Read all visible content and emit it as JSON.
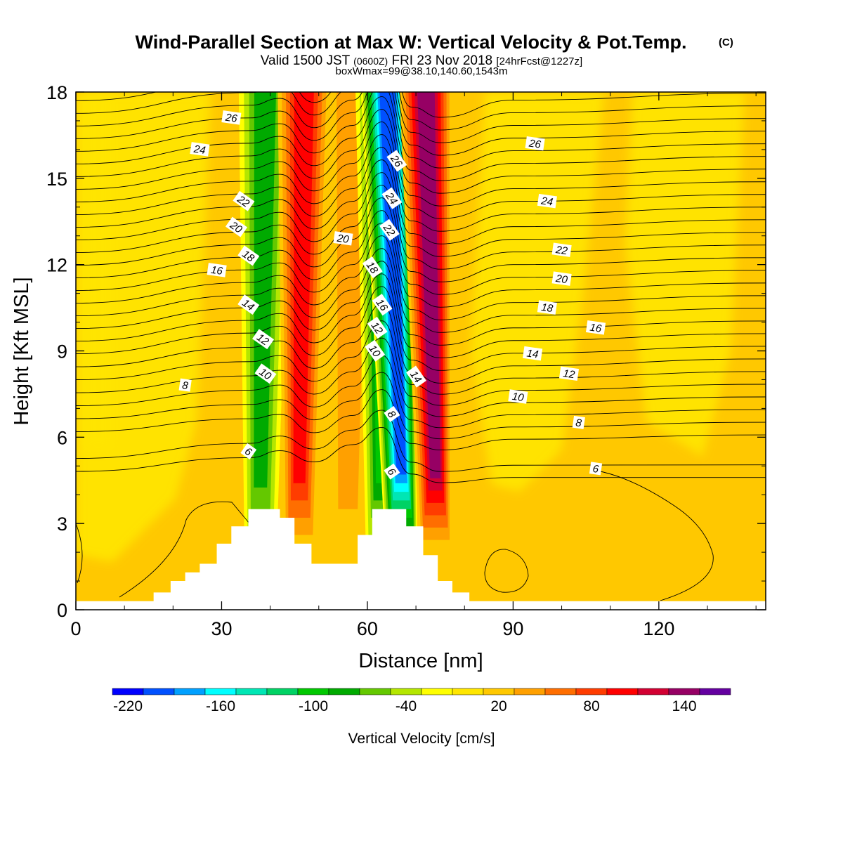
{
  "title": "Wind-Parallel Section at Max W: Vertical Velocity & Pot.Temp.",
  "copyright_mark": "(C)",
  "subtitle_valid": "Valid 1500 JST",
  "subtitle_utc": "(0600Z)",
  "subtitle_date": "FRI 23 Nov 2018",
  "subtitle_fcst": "[24hrFcst@1227z]",
  "subtitle_box": "boxWmax=99@38.10,140.60,1543m",
  "chart_data": {
    "type": "heatmap",
    "xlabel": "Distance [nm]",
    "ylabel": "Height [Kft MSL]",
    "xlim": [
      0,
      142
    ],
    "ylim": [
      0,
      18
    ],
    "x_ticks": [
      0,
      30,
      60,
      90,
      120
    ],
    "y_ticks": [
      0,
      3,
      6,
      9,
      12,
      15,
      18
    ],
    "field": "Vertical Velocity",
    "colorbar": {
      "label": "Vertical Velocity [cm/s]",
      "tick_labels": [
        -220,
        -160,
        -100,
        -40,
        20,
        80,
        140
      ],
      "levels": [
        -220,
        -200,
        -180,
        -160,
        -140,
        -120,
        -100,
        -80,
        -60,
        -40,
        -20,
        0,
        20,
        40,
        60,
        80,
        100,
        120,
        140,
        160
      ],
      "colors": [
        "#0000ff",
        "#0050ff",
        "#00a0ff",
        "#00ffff",
        "#00e6b4",
        "#00d264",
        "#00c800",
        "#00aa00",
        "#64c800",
        "#b4e600",
        "#ffff00",
        "#ffe600",
        "#ffc800",
        "#ffa000",
        "#ff6e00",
        "#ff3c00",
        "#ff0000",
        "#d20032",
        "#960064",
        "#6400a0"
      ]
    },
    "bands": [
      {
        "x_bottom": 38,
        "x_top": 39,
        "value": -80
      },
      {
        "x_bottom": 46,
        "x_top": 47,
        "value": 100
      },
      {
        "x_bottom": 56,
        "x_top": 57,
        "value": 40
      },
      {
        "x_bottom": 63,
        "x_top": 63,
        "value": -100
      },
      {
        "x_bottom": 67,
        "x_top": 64,
        "value": -200
      },
      {
        "x_bottom": 74,
        "x_top": 72,
        "value": 140
      }
    ],
    "terrain_kft": [
      {
        "x": 0,
        "h": 0.3
      },
      {
        "x": 16,
        "h": 0.3
      },
      {
        "x": 16,
        "h": 0.6
      },
      {
        "x": 19.5,
        "h": 0.6
      },
      {
        "x": 19.5,
        "h": 1.0
      },
      {
        "x": 22.5,
        "h": 1.0
      },
      {
        "x": 22.5,
        "h": 1.3
      },
      {
        "x": 25.5,
        "h": 1.3
      },
      {
        "x": 25.5,
        "h": 1.6
      },
      {
        "x": 29,
        "h": 1.6
      },
      {
        "x": 29,
        "h": 2.3
      },
      {
        "x": 32,
        "h": 2.3
      },
      {
        "x": 32,
        "h": 2.9
      },
      {
        "x": 35.5,
        "h": 2.9
      },
      {
        "x": 35.5,
        "h": 3.5
      },
      {
        "x": 42,
        "h": 3.5
      },
      {
        "x": 42,
        "h": 3.2
      },
      {
        "x": 45,
        "h": 3.2
      },
      {
        "x": 45,
        "h": 2.3
      },
      {
        "x": 48.5,
        "h": 2.3
      },
      {
        "x": 48.5,
        "h": 1.6
      },
      {
        "x": 58,
        "h": 1.6
      },
      {
        "x": 58,
        "h": 2.6
      },
      {
        "x": 61,
        "h": 2.6
      },
      {
        "x": 61,
        "h": 3.5
      },
      {
        "x": 68,
        "h": 3.5
      },
      {
        "x": 68,
        "h": 2.9
      },
      {
        "x": 71.5,
        "h": 2.9
      },
      {
        "x": 71.5,
        "h": 1.9
      },
      {
        "x": 74.5,
        "h": 1.9
      },
      {
        "x": 74.5,
        "h": 1.0
      },
      {
        "x": 77.5,
        "h": 1.0
      },
      {
        "x": 77.5,
        "h": 0.6
      },
      {
        "x": 81,
        "h": 0.6
      },
      {
        "x": 81,
        "h": 0.3
      },
      {
        "x": 142,
        "h": 0.3
      }
    ],
    "theta_contour_labels": [
      {
        "value": "26",
        "x": 32,
        "y": 17.1
      },
      {
        "value": "24",
        "x": 25.5,
        "y": 16.0
      },
      {
        "value": "22",
        "x": 34.5,
        "y": 14.2
      },
      {
        "value": "20",
        "x": 33,
        "y": 13.3
      },
      {
        "value": "18",
        "x": 35.5,
        "y": 12.3
      },
      {
        "value": "16",
        "x": 29,
        "y": 11.8
      },
      {
        "value": "14",
        "x": 35.5,
        "y": 10.6
      },
      {
        "value": "12",
        "x": 38.5,
        "y": 9.4
      },
      {
        "value": "10",
        "x": 39,
        "y": 8.2
      },
      {
        "value": "8",
        "x": 22.5,
        "y": 7.8
      },
      {
        "value": "6",
        "x": 35.5,
        "y": 5.5
      },
      {
        "value": "20",
        "x": 55,
        "y": 12.9
      },
      {
        "value": "26",
        "x": 66,
        "y": 15.6
      },
      {
        "value": "24",
        "x": 65,
        "y": 14.3
      },
      {
        "value": "22",
        "x": 64.5,
        "y": 13.2
      },
      {
        "value": "18",
        "x": 61,
        "y": 11.9
      },
      {
        "value": "16",
        "x": 63,
        "y": 10.6
      },
      {
        "value": "12",
        "x": 62,
        "y": 9.8
      },
      {
        "value": "10",
        "x": 61.5,
        "y": 9.0
      },
      {
        "value": "14",
        "x": 70,
        "y": 8.1
      },
      {
        "value": "8",
        "x": 65,
        "y": 6.8
      },
      {
        "value": "6",
        "x": 65,
        "y": 4.8
      },
      {
        "value": "26",
        "x": 94.5,
        "y": 16.2
      },
      {
        "value": "24",
        "x": 97,
        "y": 14.2
      },
      {
        "value": "22",
        "x": 100,
        "y": 12.5
      },
      {
        "value": "20",
        "x": 100,
        "y": 11.5
      },
      {
        "value": "18",
        "x": 97,
        "y": 10.5
      },
      {
        "value": "16",
        "x": 107,
        "y": 9.8
      },
      {
        "value": "14",
        "x": 94,
        "y": 8.9
      },
      {
        "value": "12",
        "x": 101.5,
        "y": 8.2
      },
      {
        "value": "10",
        "x": 91,
        "y": 7.4
      },
      {
        "value": "8",
        "x": 103.5,
        "y": 6.5
      },
      {
        "value": "6",
        "x": 107,
        "y": 4.9
      }
    ]
  }
}
